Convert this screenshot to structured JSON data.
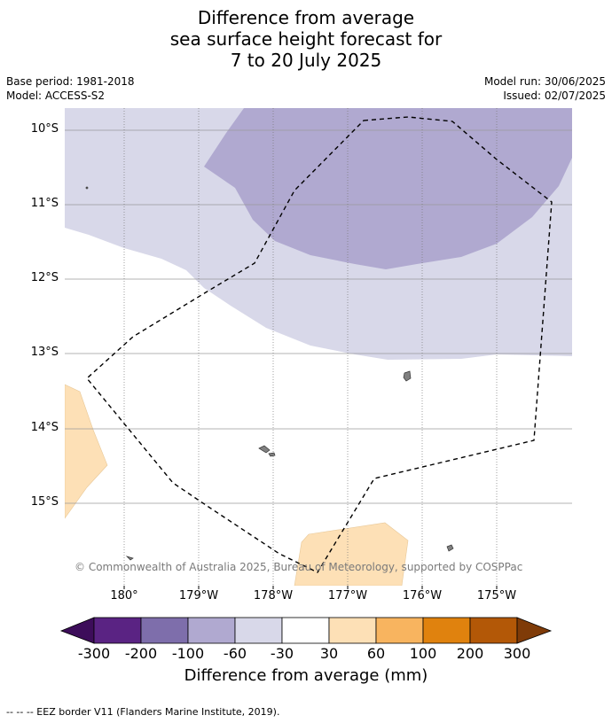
{
  "title": {
    "line1": "Difference from average",
    "line2": "sea surface height forecast for",
    "line3": "7 to 20 July 2025"
  },
  "meta": {
    "base_period": "Base period: 1981-2018",
    "model": "Model: ACCESS-S2",
    "model_run": "Model run: 30/06/2025",
    "issued": "Issued: 02/07/2025"
  },
  "map": {
    "lat_labels": [
      "10°S",
      "11°S",
      "12°S",
      "13°S",
      "14°S",
      "15°S"
    ],
    "lon_labels": [
      "180°",
      "179°W",
      "178°W",
      "177°W",
      "176°W",
      "175°W"
    ],
    "copyright": "© Commonwealth of Australia 2025, Bureau of Meteorology, supported by COSPPac",
    "colors": {
      "light_purple": "#d8d8e9",
      "mid_purple": "#b0a9d0",
      "light_orange": "#fde0b6",
      "land": "#808080",
      "eez": "#000000"
    }
  },
  "colorbar": {
    "tick_labels": [
      "-300",
      "-200",
      "-100",
      "-60",
      "-30",
      "30",
      "60",
      "100",
      "200",
      "300"
    ],
    "colors": [
      "#3d0d5a",
      "#5a2383",
      "#7e6eab",
      "#b0a9d0",
      "#d8d8e9",
      "#ffffff",
      "#fde0b6",
      "#f8b45f",
      "#e0820e",
      "#b35807",
      "#7f3b08"
    ],
    "label": "Difference from average (mm)"
  },
  "footer": "--  --  -- EEZ border V11 (Flanders Marine Institute, 2019)."
}
